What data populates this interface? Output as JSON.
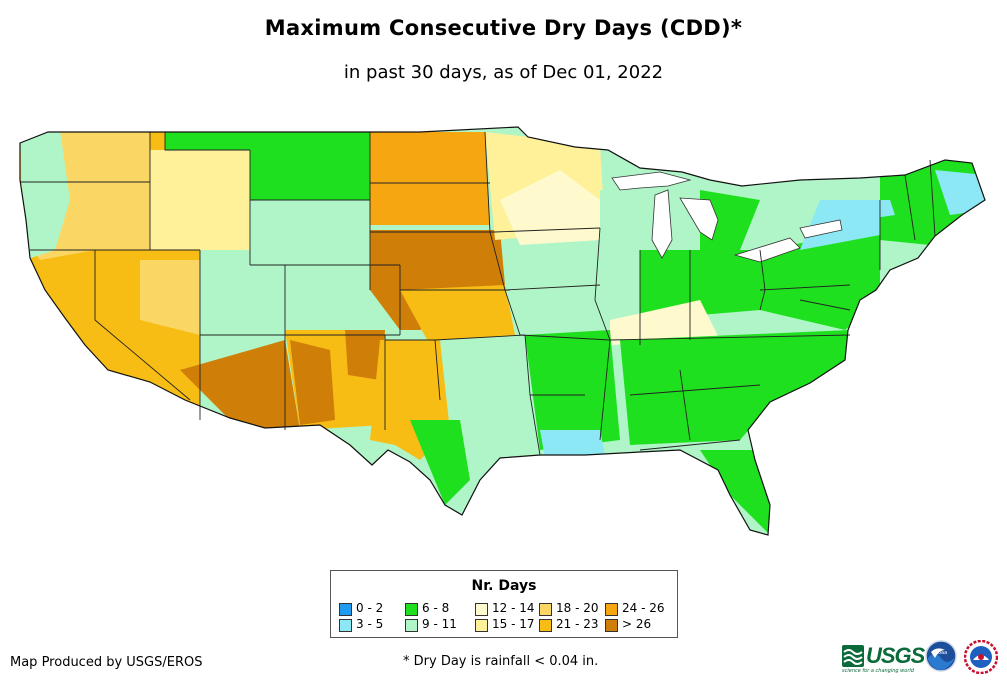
{
  "title": "Maximum Consecutive Dry Days (CDD)*",
  "subtitle": "in past 30 days, as of Dec 01, 2022",
  "legend": {
    "title": "Nr. Days",
    "items": [
      {
        "label": "0 - 2",
        "color": "#1f9bf0"
      },
      {
        "label": "3 - 5",
        "color": "#8ce8f5"
      },
      {
        "label": "6 - 8",
        "color": "#1fe01f"
      },
      {
        "label": "9 - 11",
        "color": "#b0f5c8"
      },
      {
        "label": "12 - 14",
        "color": "#fffacd"
      },
      {
        "label": "15 - 17",
        "color": "#fff09a"
      },
      {
        "label": "18 - 20",
        "color": "#fad765"
      },
      {
        "label": "21 - 23",
        "color": "#f8bd14"
      },
      {
        "label": "24 - 26",
        "color": "#f5a611"
      },
      {
        "label": "> 26",
        "color": "#cf7f08"
      }
    ]
  },
  "footer": {
    "producer": "Map Produced by USGS/EROS",
    "note": "* Dry Day is rainfall < 0.04 in."
  },
  "logos": {
    "usgs": "USGS",
    "usgs_tagline": "science for a changing world",
    "noaa": "noaa"
  }
}
